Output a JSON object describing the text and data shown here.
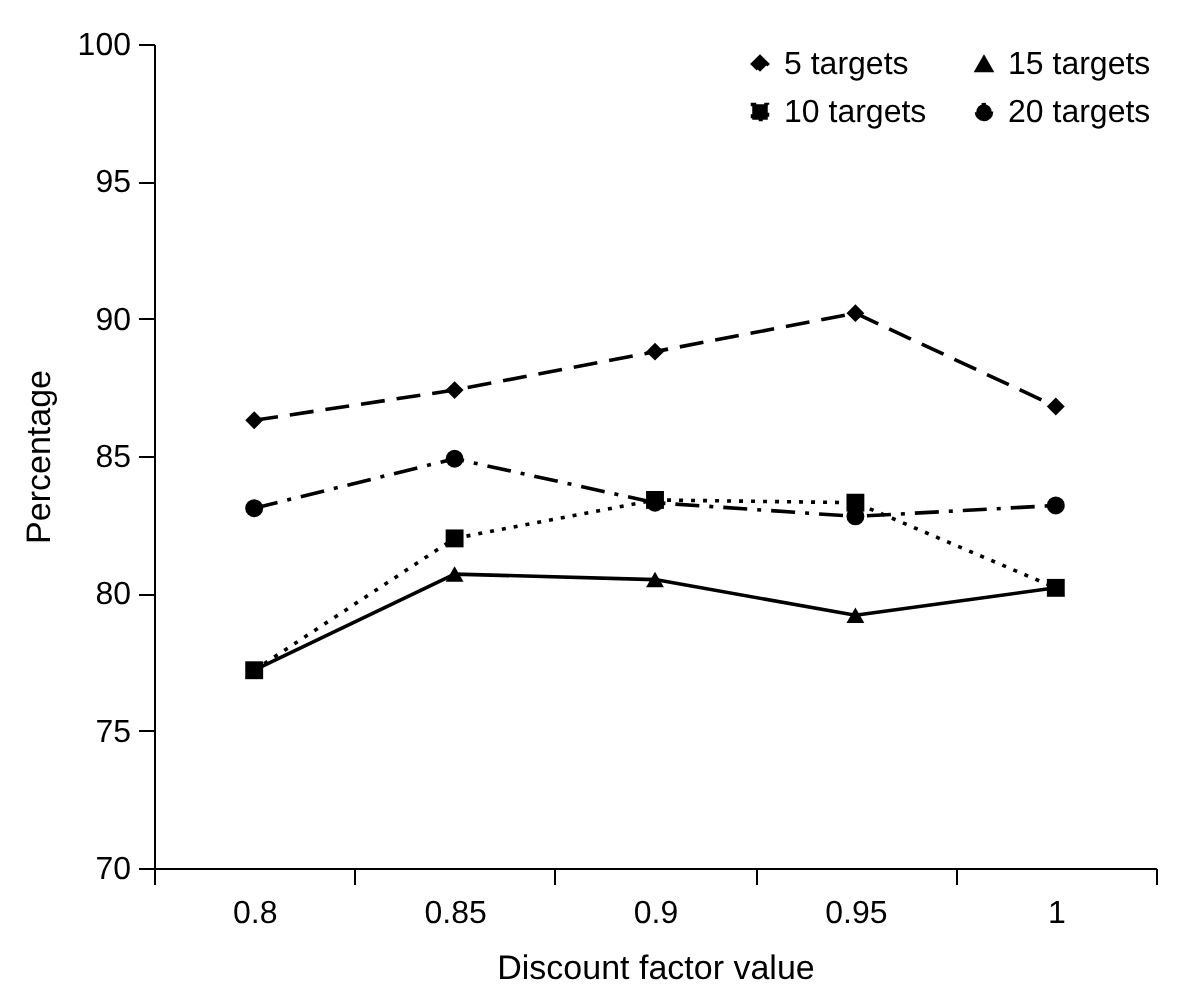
{
  "chart_data": {
    "type": "line",
    "xlabel": "Discount factor value",
    "ylabel": "Percentage",
    "categories": [
      "0.8",
      "0.85",
      "0.9",
      "0.95",
      "1"
    ],
    "ylim": [
      70,
      100
    ],
    "yticks": [
      70,
      75,
      80,
      85,
      90,
      95,
      100
    ],
    "grid": false,
    "legend": "top right",
    "series": [
      {
        "name": "5 targets",
        "color": "#000000",
        "marker": "diamond",
        "line_style": "dashed",
        "values": [
          86.3,
          87.4,
          88.8,
          90.2,
          86.8
        ]
      },
      {
        "name": "10 targets",
        "color": "#000000",
        "marker": "square",
        "line_style": "dotted",
        "values": [
          77.2,
          82.0,
          83.4,
          83.3,
          80.2
        ]
      },
      {
        "name": "15 targets",
        "color": "#000000",
        "marker": "triangle",
        "line_style": "solid",
        "values": [
          77.2,
          80.7,
          80.5,
          79.2,
          80.2
        ]
      },
      {
        "name": "20 targets",
        "color": "#000000",
        "marker": "circle",
        "line_style": "dashdot",
        "values": [
          83.1,
          84.9,
          83.3,
          82.8,
          83.2
        ]
      }
    ]
  }
}
